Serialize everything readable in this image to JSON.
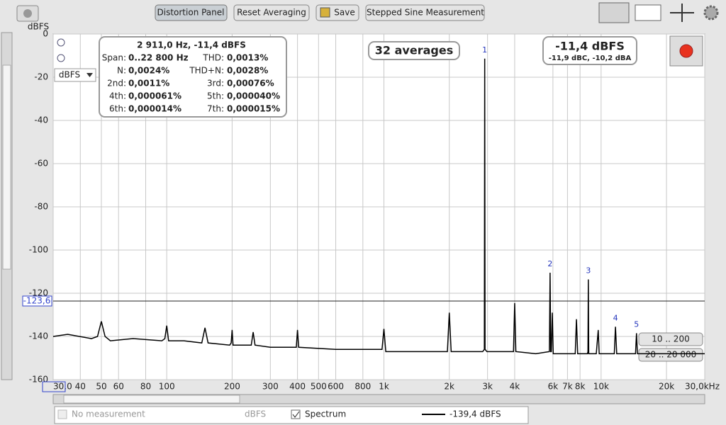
{
  "toolbar": {
    "buttons": [
      "Distortion Panel",
      "Reset Averaging",
      "Save",
      "Stepped Sine Measurement"
    ]
  },
  "unit_dropdown": "dBFS",
  "info_panel": {
    "title": "2 911,0 Hz, -11,4 dBFS",
    "rows": [
      [
        "Span:",
        "0..22 800 Hz",
        "THD:",
        "0,0013%"
      ],
      [
        "N:",
        "0,0024%",
        "THD+N:",
        "0,0028%"
      ],
      [
        "2nd:",
        "0,0011%",
        "3rd:",
        "0,00076%"
      ],
      [
        "4th:",
        "0,000061%",
        "5th:",
        "0,000040%"
      ],
      [
        "6th:",
        "0,000014%",
        "7th:",
        "0,000015%"
      ]
    ]
  },
  "averages": "32 averages",
  "level": {
    "main": "-11,4 dBFS",
    "sub": "-11,9 dBC, -10,2 dBA"
  },
  "range_buttons": [
    "10 .. 200",
    "20 .. 20 000"
  ],
  "legend": {
    "measurement": "No measurement",
    "unit": "dBFS",
    "readout": "-139,4 dBFS"
  },
  "chart_data": {
    "type": "line",
    "y_label": "dBFS",
    "log_x": true,
    "grid": true,
    "xlim": [
      30,
      30000
    ],
    "ylim": [
      -160,
      0
    ],
    "xticks": [
      {
        "value": 30,
        "label": "30,0"
      },
      40,
      50,
      60,
      80,
      100,
      200,
      300,
      400,
      500,
      600,
      800,
      {
        "value": 1000,
        "label": "1k"
      },
      {
        "value": 2000,
        "label": "2k"
      },
      {
        "value": 3000,
        "label": "3k"
      },
      {
        "value": 4000,
        "label": "4k"
      },
      {
        "value": 6000,
        "label": "6k"
      },
      {
        "value": 7000,
        "label": "7k"
      },
      {
        "value": 8000,
        "label": "8k"
      },
      {
        "value": 10000,
        "label": "10k"
      },
      {
        "value": 20000,
        "label": "20k"
      },
      {
        "value": 30000,
        "label": "30,0kHz"
      }
    ],
    "yticks": [
      0,
      -20,
      -40,
      -60,
      -80,
      -100,
      -120,
      -140,
      -160
    ],
    "cursor": {
      "value": -123.6,
      "label": "-123,6"
    },
    "x": [
      30,
      35,
      45,
      48,
      50,
      52,
      55,
      70,
      95,
      98,
      100,
      102,
      120,
      145,
      150,
      155,
      195,
      198,
      200,
      202,
      245,
      250,
      255,
      300,
      395,
      400,
      405,
      600,
      800,
      980,
      1000,
      1020,
      1500,
      1960,
      2000,
      2040,
      2850,
      2900,
      2911,
      2922,
      2980,
      3500,
      3950,
      4000,
      4050,
      5000,
      5780,
      5822,
      5860,
      5900,
      5960,
      6020,
      7000,
      7600,
      7700,
      7800,
      8650,
      8700,
      8733,
      8770,
      9500,
      9700,
      9800,
      10000,
      11500,
      11644,
      11800,
      14400,
      14555,
      14700,
      18000,
      22000,
      25000,
      30000
    ],
    "series": [
      {
        "name": "Spectrum",
        "color": "#000000",
        "values": [
          -140,
          -139,
          -141,
          -140,
          -133,
          -140,
          -142,
          -141,
          -142,
          -141,
          -135,
          -142,
          -142,
          -143,
          -136,
          -143,
          -144,
          -143,
          -137,
          -144,
          -144,
          -138,
          -144,
          -145,
          -145,
          -137,
          -145,
          -146,
          -146,
          -146,
          -136.5,
          -147,
          -147,
          -147,
          -129,
          -147,
          -147,
          -146,
          -11.4,
          -146,
          -147,
          -147,
          -147,
          -124.5,
          -147,
          -148,
          -147,
          -110.5,
          -147,
          -147,
          -129,
          -148,
          -148,
          -148,
          -132,
          -148,
          -148,
          -147,
          -113.6,
          -148,
          -148,
          -137,
          -148,
          -148,
          -148,
          -135.5,
          -148,
          -148,
          -138.5,
          -148,
          -148,
          -148,
          -148,
          -148
        ]
      }
    ],
    "annotations": [
      {
        "text": "1",
        "x": 2911,
        "y": -11.4
      },
      {
        "text": "2",
        "x": 5822,
        "y": -110.5
      },
      {
        "text": "3",
        "x": 8733,
        "y": -113.6
      },
      {
        "text": "4",
        "x": 11644,
        "y": -135.5
      },
      {
        "text": "5",
        "x": 14555,
        "y": -138.5
      }
    ]
  }
}
